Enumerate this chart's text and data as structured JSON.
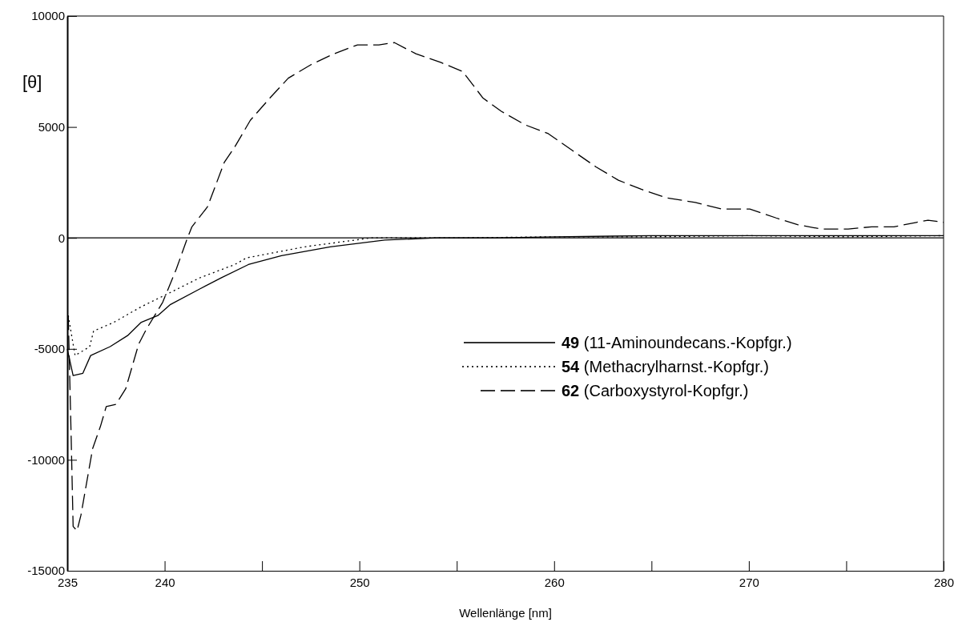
{
  "chart_data": {
    "type": "line",
    "xlabel": "Wellenlänge [nm]",
    "ylabel": "[θ]",
    "xlim": [
      235,
      280
    ],
    "ylim": [
      -15000,
      10000
    ],
    "xticks": [
      235,
      240,
      {
        "value": 245,
        "label": null
      },
      250,
      {
        "value": 255,
        "label": null
      },
      260,
      {
        "value": 265,
        "label": null
      },
      270,
      {
        "value": 275,
        "label": null
      },
      280
    ],
    "yticks": [
      -15000,
      -10000,
      -5000,
      0,
      5000,
      10000
    ],
    "grid": false,
    "legend": "right",
    "marker": "none",
    "ref_lines": [
      {
        "axis": "y",
        "value": 0,
        "color": "#000000"
      }
    ],
    "series": [
      {
        "name": "49 (11-Aminoundecans.-Kopfgr.)",
        "color": "#000000",
        "line_style": "solid",
        "x": [
          235.0,
          235.3,
          235.8,
          236.2,
          237.2,
          238.1,
          238.8,
          239.65,
          240.3,
          241.8,
          242.9,
          244.3,
          246.0,
          248.5,
          251.3,
          254.0,
          257.0,
          260.0,
          265.0,
          270.0,
          275.0,
          280.0
        ],
        "values": [
          -5000,
          -6200,
          -6100,
          -5300,
          -4900,
          -4400,
          -3800,
          -3500,
          -3000,
          -2300,
          -1800,
          -1200,
          -800,
          -400,
          -100,
          0,
          0,
          50,
          100,
          100,
          100,
          100
        ]
      },
      {
        "name": "54 (Methacrylharnst.-Kopfgr.)",
        "color": "#000000",
        "line_style": "dotted",
        "x": [
          235.05,
          235.4,
          236.15,
          236.35,
          237.4,
          238.8,
          240.2,
          241.8,
          243.6,
          244.2,
          247.2,
          250.6,
          255.0,
          260.0,
          265.0,
          270.0,
          275.0,
          280.0
        ],
        "values": [
          -3500,
          -5300,
          -4900,
          -4200,
          -3800,
          -3100,
          -2500,
          -1800,
          -1200,
          -900,
          -400,
          0,
          0,
          50,
          50,
          100,
          50,
          100
        ]
      },
      {
        "name": "62 (Carboxystyrol-Kopfgr.)",
        "color": "#000000",
        "line_style": "dashed",
        "x": [
          235.05,
          235.2,
          235.3,
          235.5,
          235.7,
          236.0,
          236.3,
          236.7,
          237.0,
          237.5,
          238.0,
          238.66,
          239.07,
          239.9,
          240.6,
          241.13,
          241.4,
          242.2,
          243.06,
          243.6,
          244.4,
          245.4,
          246.35,
          247.5,
          248.7,
          249.9,
          251.0,
          251.8,
          252.9,
          254.2,
          255.3,
          256.35,
          257.3,
          258.5,
          259.7,
          261.0,
          262.15,
          263.3,
          264.45,
          265.8,
          267.25,
          268.6,
          270.05,
          271.4,
          272.5,
          273.7,
          275.1,
          276.3,
          277.45,
          278.6,
          279.2,
          280.0
        ],
        "values": [
          -3500,
          -9000,
          -13000,
          -13200,
          -12500,
          -11000,
          -9500,
          -8500,
          -7600,
          -7500,
          -6800,
          -4800,
          -4100,
          -2900,
          -1400,
          -100,
          500,
          1400,
          3400,
          4100,
          5300,
          6300,
          7200,
          7800,
          8300,
          8700,
          8700,
          8800,
          8300,
          7900,
          7500,
          6300,
          5700,
          5100,
          4700,
          3900,
          3200,
          2600,
          2200,
          1800,
          1600,
          1300,
          1300,
          900,
          600,
          400,
          400,
          500,
          500,
          700,
          800,
          700
        ]
      }
    ]
  }
}
